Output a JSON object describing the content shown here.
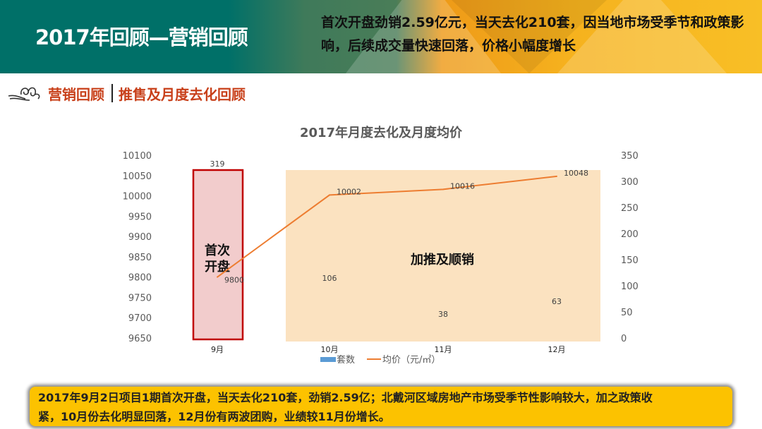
{
  "header": {
    "title": "2017年回顾—营销回顾",
    "summary": "首次开盘劲销2.59亿元，当天去化210套，因当地市场受季节和政策影响，后续成交量快速回落，价格小幅度增长"
  },
  "subheader": {
    "section": "营销回顾",
    "topic": "推售及月度去化回顾",
    "icon": "cloud-swirl-icon"
  },
  "annotations": {
    "first_open": "首次开盘",
    "push_sales": "加推及顺销"
  },
  "colors": {
    "header_teal": "#007068",
    "header_yellow": "#f8bf26",
    "accent_red": "#c8401a",
    "bar": "#5b9bd5",
    "line": "#ed7d31",
    "highlight_red_fill": "#f2cccc",
    "highlight_red_border": "#c00000",
    "highlight_orange_fill": "#fbe2c0",
    "bottom_box": "#fcc200"
  },
  "chart_data": {
    "type": "bar+line",
    "title": "2017年月度去化及月度均价",
    "categories": [
      "9月",
      "10月",
      "11月",
      "12月"
    ],
    "series": [
      {
        "name": "套数",
        "type": "bar",
        "axis": "right",
        "values": [
          319,
          106,
          38,
          63
        ]
      },
      {
        "name": "均价（元/㎡）",
        "type": "line",
        "axis": "left",
        "values": [
          9800,
          10002,
          10016,
          10048
        ]
      }
    ],
    "left_axis": {
      "ylim": [
        9650,
        10100
      ],
      "ticks": [
        "10100",
        "10050",
        "10000",
        "9950",
        "9900",
        "9850",
        "9800",
        "9750",
        "9700",
        "9650"
      ]
    },
    "right_axis": {
      "ylim": [
        0,
        350
      ],
      "ticks": [
        "350",
        "300",
        "250",
        "200",
        "150",
        "100",
        "50",
        "0"
      ]
    },
    "legend": "bottom",
    "grid": false
  },
  "bottom_note": {
    "line1": "2017年9月2日项目1期首次开盘，当天去化210套，劲销2.59亿；北戴河区域房地产市场受季节性影响较大，加之政策收",
    "line2": "紧，10月份去化明显回落，12月份有两波团购，业绩较11月份增长。"
  }
}
